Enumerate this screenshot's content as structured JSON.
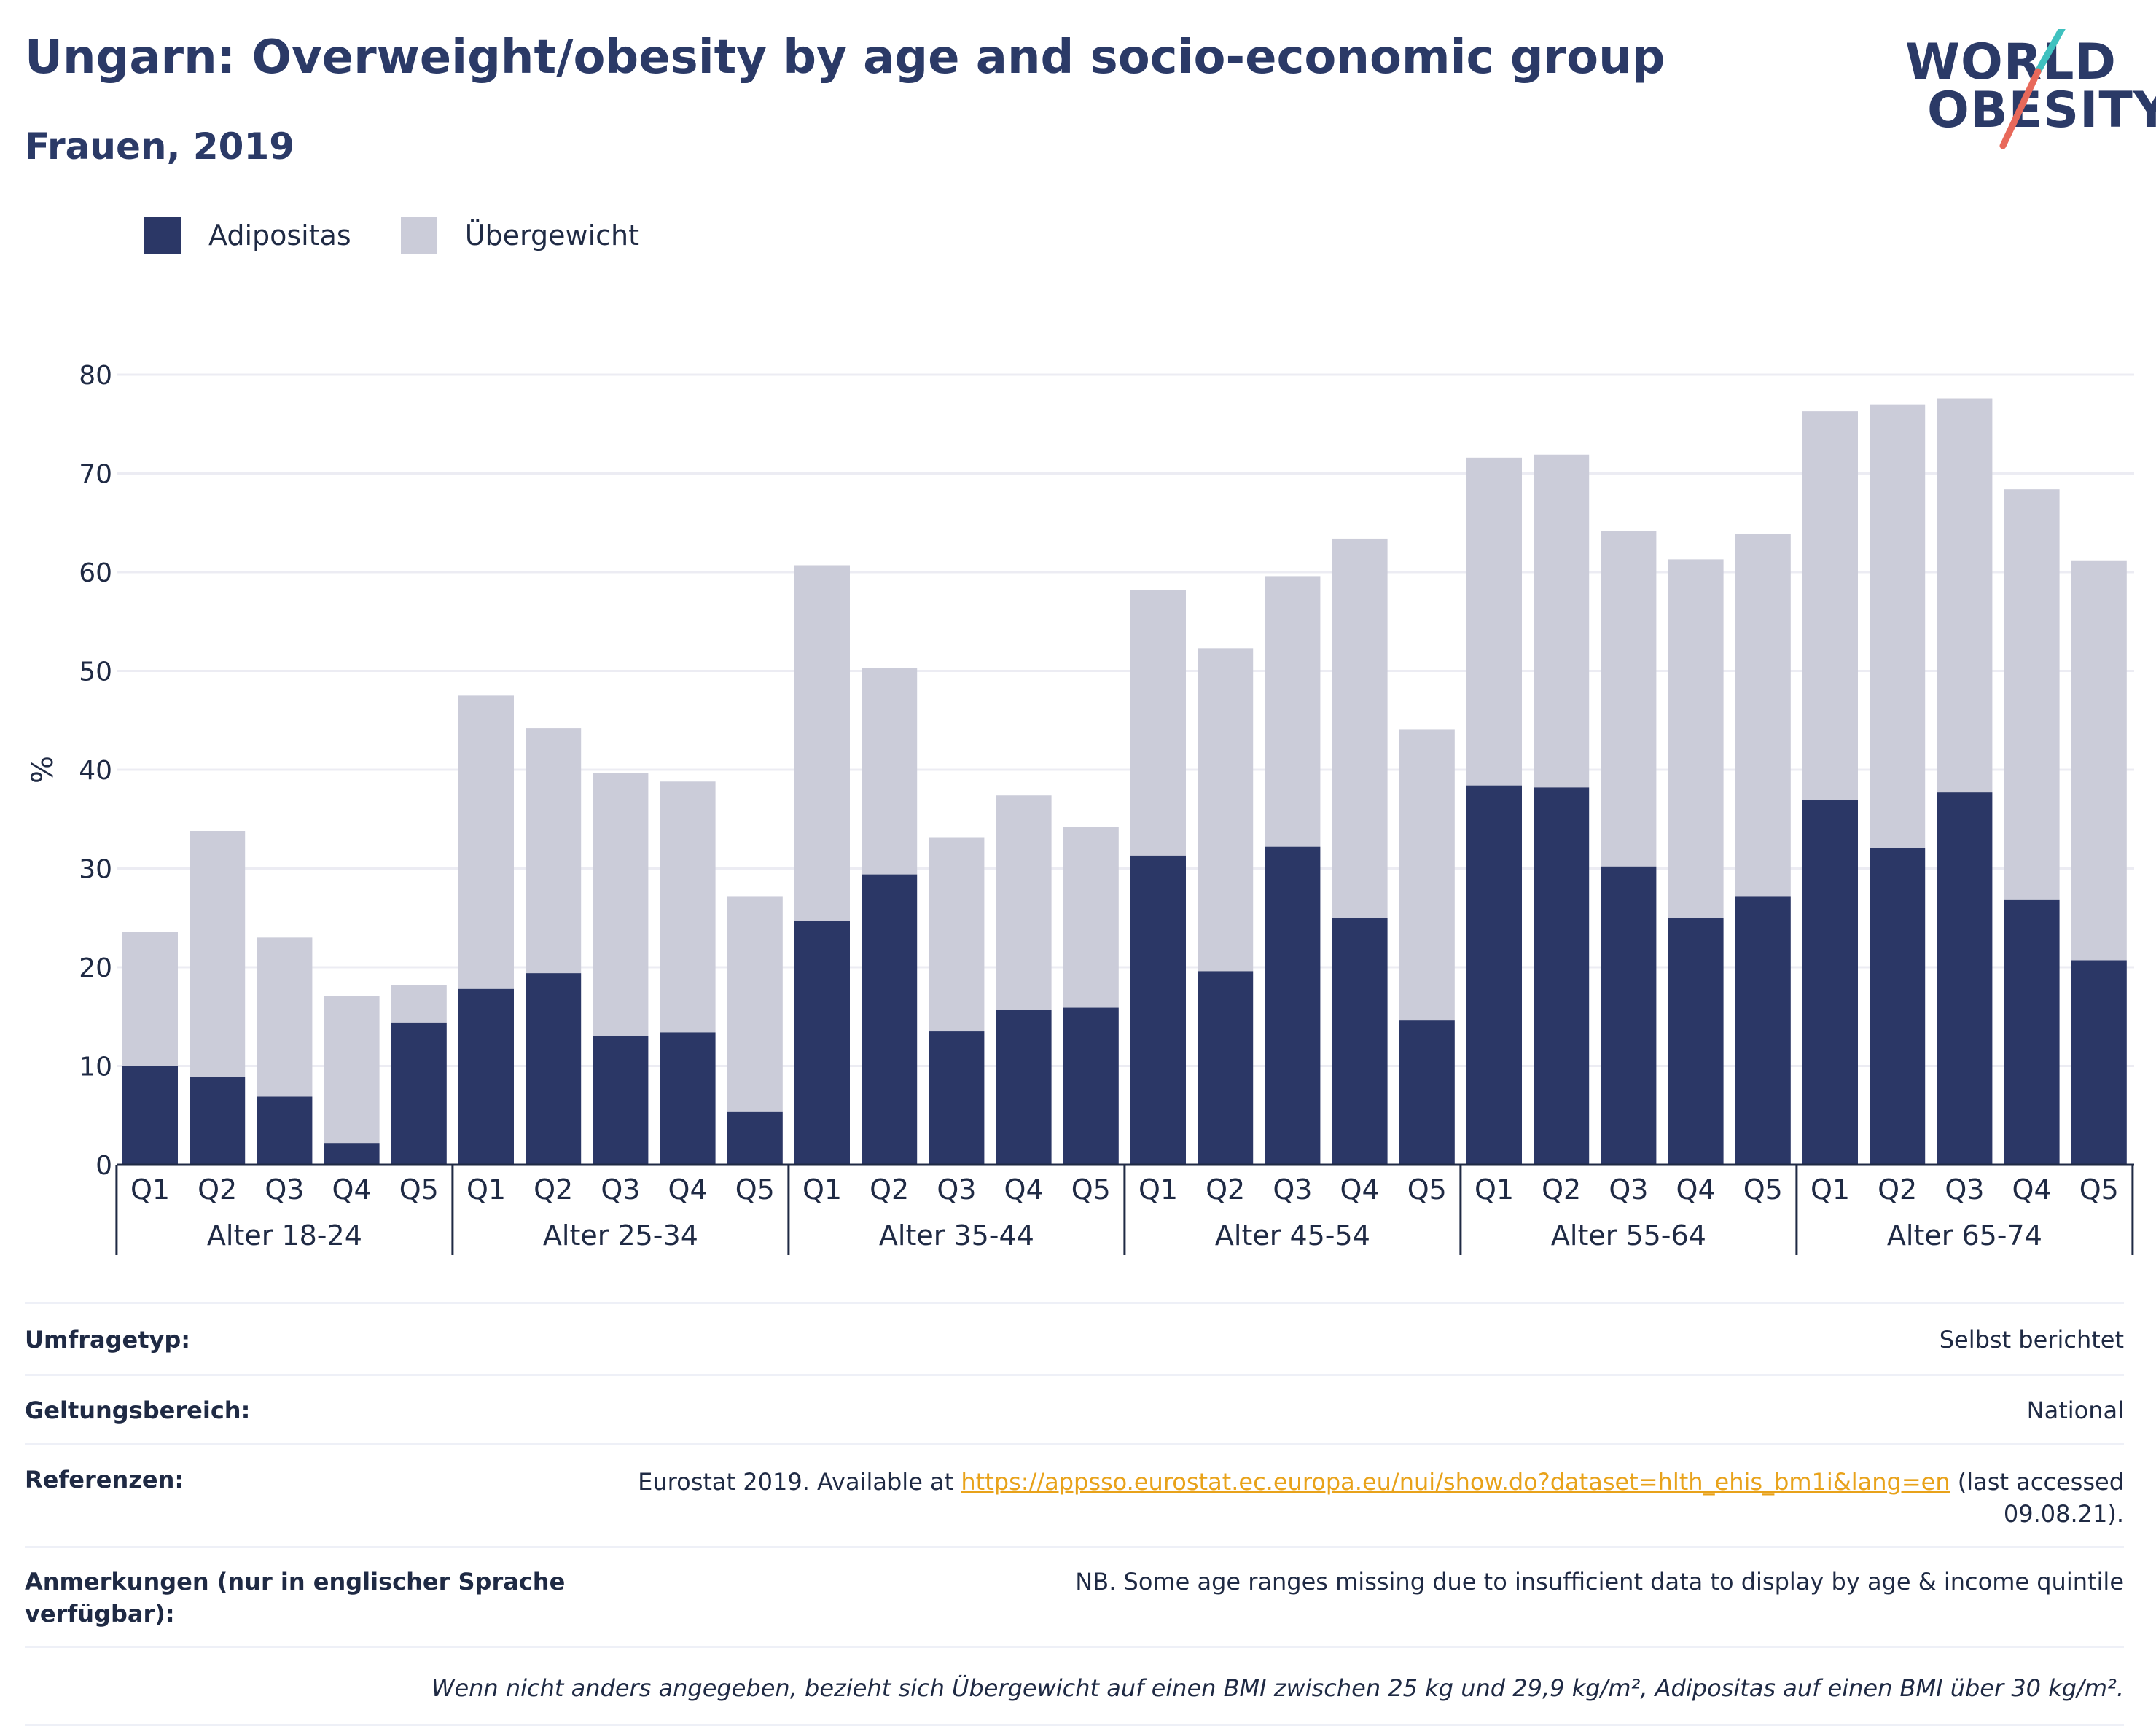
{
  "header": {
    "title": "Ungarn: Overweight/obesity by age and socio-economic group",
    "subtitle": "Frauen, 2019"
  },
  "logo": {
    "line1": "WORLD",
    "line2": "OBESITY"
  },
  "colors": {
    "obesity": "#2b3766",
    "overweight": "#cbccd9",
    "title": "#2b3a67",
    "grid": "#ececf3",
    "link": "#e8a21a",
    "logo_teal": "#3fc1bf",
    "logo_coral": "#e8695a"
  },
  "legend": {
    "items": [
      "Adipositas",
      "Übergewicht"
    ]
  },
  "chart_data": {
    "type": "bar",
    "stacked": true,
    "ylabel": "%",
    "ylim": [
      0,
      80
    ],
    "yticks": [
      0,
      10,
      20,
      30,
      40,
      50,
      60,
      70,
      80
    ],
    "grid": true,
    "legend_position": "top-left",
    "groups": [
      "Alter 18-24",
      "Alter 25-34",
      "Alter 35-44",
      "Alter 45-54",
      "Alter 55-64",
      "Alter 65-74"
    ],
    "categories": [
      "Q1",
      "Q2",
      "Q3",
      "Q4",
      "Q5"
    ],
    "series": [
      {
        "name": "Adipositas",
        "values": [
          [
            10.0,
            8.9,
            6.9,
            2.2,
            14.4
          ],
          [
            17.8,
            19.4,
            13.0,
            13.4,
            5.4
          ],
          [
            24.7,
            29.4,
            13.5,
            15.7,
            15.9
          ],
          [
            31.3,
            19.6,
            32.2,
            25.0,
            14.6
          ],
          [
            38.4,
            38.2,
            30.2,
            25.0,
            27.2
          ],
          [
            36.9,
            32.1,
            37.7,
            26.8,
            20.7
          ]
        ]
      },
      {
        "name": "Übergewicht",
        "values": [
          [
            13.6,
            24.9,
            16.1,
            14.9,
            3.8
          ],
          [
            29.7,
            24.8,
            26.7,
            25.4,
            21.8
          ],
          [
            36.0,
            20.9,
            19.6,
            21.7,
            18.3
          ],
          [
            26.9,
            32.7,
            27.4,
            38.4,
            29.5
          ],
          [
            33.2,
            33.7,
            34.0,
            36.3,
            36.7
          ],
          [
            39.4,
            44.9,
            39.9,
            41.6,
            40.5
          ]
        ]
      }
    ]
  },
  "info": {
    "survey_label": "Umfragetyp:",
    "survey_value": "Selbst berichtet",
    "scope_label": "Geltungsbereich:",
    "scope_value": "National",
    "ref_label": "Referenzen:",
    "ref_prefix": "Eurostat 2019. Available at ",
    "ref_link": "https://appsso.eurostat.ec.europa.eu/nui/show.do?dataset=hlth_ehis_bm1i&lang=en",
    "ref_suffix": " (last accessed 09.08.21).",
    "notes_label": "Anmerkungen (nur in englischer Sprache verfügbar):",
    "notes_value": "NB. Some age ranges missing due to insufficient data to display by age & income quintile",
    "footnote": "Wenn nicht anders angegeben, bezieht sich Übergewicht auf einen BMI zwischen 25 kg und 29,9 kg/m², Adipositas auf einen BMI über 30 kg/m²."
  }
}
